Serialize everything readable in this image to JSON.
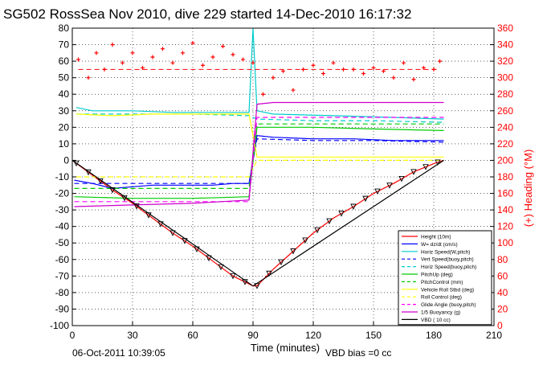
{
  "title": "SG502 RossSea Nov 2010, dive 229 started 14-Dec-2010 16:17:32",
  "footer": {
    "timestamp": "06-Oct-2011 10:39:05",
    "vbd_bias": "VBD bias =0 cc"
  },
  "chart_data": {
    "type": "line",
    "xlabel": "Time (minutes)",
    "ylabel_right": "(+) Heading (°M)",
    "xlim": [
      0,
      210
    ],
    "ylim": [
      -100,
      80
    ],
    "ylim_right": [
      0,
      360
    ],
    "x_ticks": [
      0,
      30,
      60,
      90,
      120,
      150,
      180,
      210
    ],
    "y_ticks": [
      -100,
      -90,
      -80,
      -70,
      -60,
      -50,
      -40,
      -30,
      -20,
      -10,
      0,
      10,
      20,
      30,
      40,
      50,
      60,
      70,
      80
    ],
    "y_ticks_right": [
      0,
      20,
      40,
      60,
      80,
      100,
      120,
      140,
      160,
      180,
      200,
      220,
      240,
      260,
      280,
      300,
      320,
      340,
      360
    ],
    "grid": true,
    "legend_position": "bottom-right",
    "series": [
      {
        "name": "Height (10m)",
        "color": "#ff0000",
        "style": "solid",
        "x": [
          0,
          10,
          20,
          30,
          40,
          50,
          60,
          70,
          80,
          90,
          92,
          100,
          110,
          120,
          130,
          140,
          150,
          160,
          170,
          180,
          185
        ],
        "y": [
          0,
          -9,
          -18,
          -26,
          -35,
          -44,
          -52,
          -61,
          -70,
          -76,
          -76,
          -66,
          -55,
          -44,
          -35,
          -28,
          -20,
          -14,
          -7,
          -2,
          0
        ]
      },
      {
        "name": "W= dz/dt (cm/s)",
        "color": "#0000ff",
        "style": "solid",
        "x": [
          1,
          10,
          20,
          30,
          40,
          50,
          60,
          70,
          80,
          88,
          92,
          100,
          120,
          140,
          160,
          185
        ],
        "y": [
          -12,
          -14,
          -17,
          -16,
          -15,
          -15,
          -15,
          -15,
          -14,
          -14,
          15,
          14,
          13,
          13,
          12,
          12
        ]
      },
      {
        "name": "Horiz Speed(W,pitch)",
        "color": "#00cccc",
        "style": "solid",
        "x": [
          2,
          10,
          30,
          50,
          70,
          88,
          90,
          92,
          100,
          130,
          160,
          185
        ],
        "y": [
          32,
          30,
          30,
          29,
          29,
          29,
          80,
          30,
          28,
          27,
          26,
          25
        ]
      },
      {
        "name": "Vert Speed(buoy,pitch)",
        "color": "#0000ff",
        "style": "dashed",
        "x": [
          1,
          30,
          60,
          88,
          92,
          120,
          150,
          185
        ],
        "y": [
          -14,
          -14,
          -14,
          -14,
          13,
          12,
          12,
          11
        ]
      },
      {
        "name": "Horiz Speed(buoy,pitch)",
        "color": "#00cccc",
        "style": "dashed",
        "x": [
          2,
          30,
          60,
          88,
          92,
          120,
          150,
          185
        ],
        "y": [
          28,
          28,
          28,
          27,
          25,
          24,
          24,
          23
        ]
      },
      {
        "name": "PitchUp (deg)",
        "color": "#00cc00",
        "style": "solid",
        "x": [
          1,
          30,
          60,
          88,
          92,
          120,
          150,
          185
        ],
        "y": [
          -22,
          -23,
          -23,
          -22,
          20,
          20,
          19,
          18
        ]
      },
      {
        "name": "PitchControl (mm)",
        "color": "#00cc00",
        "style": "dashed",
        "x": [
          1,
          30,
          60,
          88,
          92,
          120,
          150,
          185
        ],
        "y": [
          -17,
          -17,
          -17,
          -17,
          22,
          22,
          22,
          22
        ]
      },
      {
        "name": "Vehicle Roll Stbd (deg)",
        "color": "#ffff00",
        "style": "solid",
        "x": [
          2,
          20,
          40,
          60,
          88,
          92,
          110,
          130,
          150,
          185
        ],
        "y": [
          28,
          27,
          28,
          28,
          28,
          2,
          2,
          2,
          2,
          2
        ]
      },
      {
        "name": "Roll Control (deg)",
        "color": "#ffff00",
        "style": "dashed",
        "x": [
          2,
          30,
          60,
          88,
          92,
          120,
          150,
          185
        ],
        "y": [
          -10,
          -10,
          -10,
          -10,
          0,
          0,
          0,
          0
        ]
      },
      {
        "name": "Glide Angle (buoy,pitch)",
        "color": "#ff00ff",
        "style": "dashed",
        "x": [
          1,
          30,
          60,
          88,
          92,
          120,
          150,
          185
        ],
        "y": [
          -25,
          -25,
          -25,
          -25,
          26,
          26,
          26,
          26
        ]
      },
      {
        "name": "1/5 Buoyancy (g)",
        "color": "#cc00cc",
        "style": "solid",
        "x": [
          1,
          30,
          60,
          88,
          92,
          100,
          120,
          150,
          185
        ],
        "y": [
          -28,
          -27,
          -26,
          -24,
          34,
          35,
          35,
          35,
          35
        ]
      },
      {
        "name": "VBD ( 10 cc)",
        "color": "#000000",
        "style": "solid",
        "x": [
          0,
          90,
          185
        ],
        "y": [
          0,
          -76,
          0
        ]
      }
    ],
    "heading": {
      "name": "Heading",
      "color": "#ff0000",
      "mean": 310,
      "x": [
        3,
        8,
        12,
        16,
        20,
        25,
        30,
        35,
        40,
        45,
        50,
        55,
        60,
        65,
        70,
        75,
        80,
        85,
        90,
        95,
        100,
        105,
        110,
        115,
        120,
        125,
        130,
        135,
        140,
        145,
        150,
        155,
        160,
        165,
        170,
        175,
        180,
        183
      ],
      "y": [
        322,
        300,
        330,
        310,
        340,
        318,
        330,
        312,
        325,
        335,
        318,
        330,
        342,
        315,
        325,
        338,
        328,
        322,
        318,
        280,
        300,
        308,
        285,
        310,
        315,
        305,
        318,
        310,
        310,
        305,
        312,
        308,
        300,
        318,
        298,
        312,
        310,
        320
      ]
    }
  }
}
